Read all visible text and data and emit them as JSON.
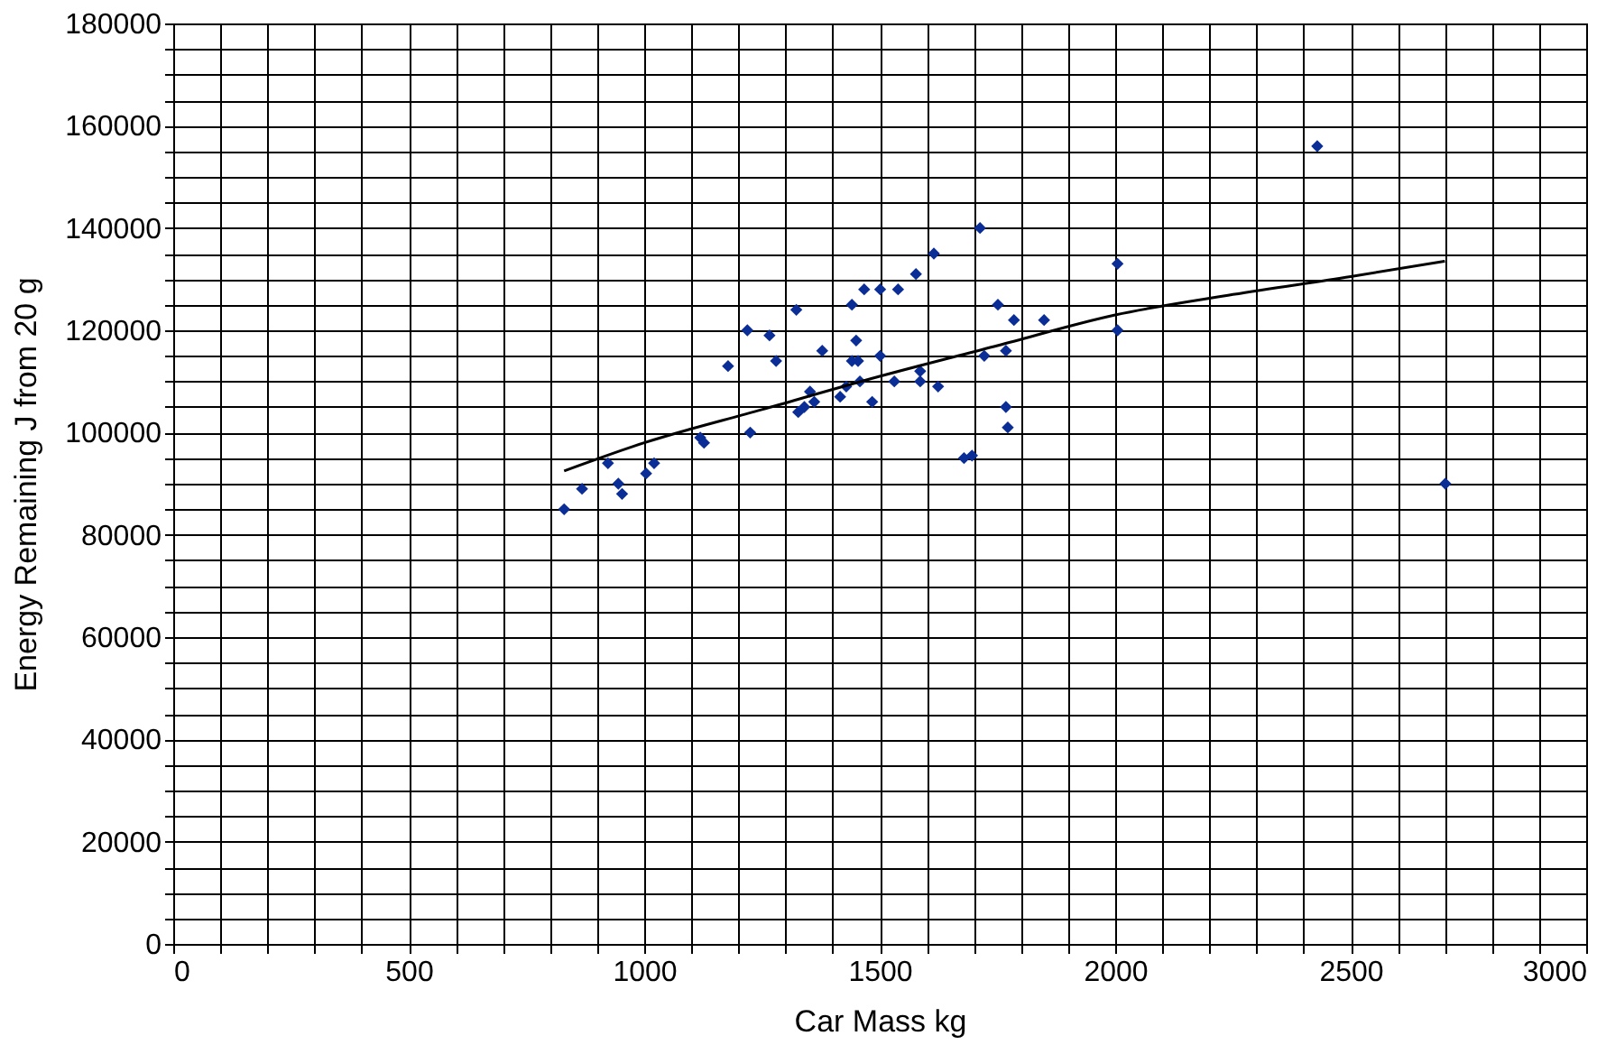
{
  "chart_data": {
    "type": "scatter",
    "xlabel": "Car Mass kg",
    "ylabel": "Energy Remaining J from 20 g",
    "xlim": [
      0,
      3000
    ],
    "ylim": [
      0,
      180000
    ],
    "xticks": [
      0,
      {
        "value": 100,
        "label": null
      },
      {
        "value": 200,
        "label": null
      },
      {
        "value": 300,
        "label": null
      },
      {
        "value": 400,
        "label": null
      },
      500,
      {
        "value": 600,
        "label": null
      },
      {
        "value": 700,
        "label": null
      },
      {
        "value": 800,
        "label": null
      },
      {
        "value": 900,
        "label": null
      },
      1000,
      {
        "value": 1100,
        "label": null
      },
      {
        "value": 1200,
        "label": null
      },
      {
        "value": 1300,
        "label": null
      },
      {
        "value": 1400,
        "label": null
      },
      1500,
      {
        "value": 1600,
        "label": null
      },
      {
        "value": 1700,
        "label": null
      },
      {
        "value": 1800,
        "label": null
      },
      {
        "value": 1900,
        "label": null
      },
      2000,
      {
        "value": 2100,
        "label": null
      },
      {
        "value": 2200,
        "label": null
      },
      {
        "value": 2300,
        "label": null
      },
      {
        "value": 2400,
        "label": null
      },
      2500,
      {
        "value": 2600,
        "label": null
      },
      {
        "value": 2700,
        "label": null
      },
      {
        "value": 2800,
        "label": null
      },
      {
        "value": 2900,
        "label": null
      },
      3000
    ],
    "yticks": [
      0,
      {
        "value": 5000,
        "label": null
      },
      {
        "value": 10000,
        "label": null
      },
      {
        "value": 15000,
        "label": null
      },
      20000,
      {
        "value": 25000,
        "label": null
      },
      {
        "value": 30000,
        "label": null
      },
      {
        "value": 35000,
        "label": null
      },
      40000,
      {
        "value": 45000,
        "label": null
      },
      {
        "value": 50000,
        "label": null
      },
      {
        "value": 55000,
        "label": null
      },
      60000,
      {
        "value": 65000,
        "label": null
      },
      {
        "value": 70000,
        "label": null
      },
      {
        "value": 75000,
        "label": null
      },
      80000,
      {
        "value": 85000,
        "label": null
      },
      {
        "value": 90000,
        "label": null
      },
      {
        "value": 95000,
        "label": null
      },
      100000,
      {
        "value": 105000,
        "label": null
      },
      {
        "value": 110000,
        "label": null
      },
      {
        "value": 115000,
        "label": null
      },
      120000,
      {
        "value": 125000,
        "label": null
      },
      {
        "value": 130000,
        "label": null
      },
      {
        "value": 135000,
        "label": null
      },
      140000,
      {
        "value": 145000,
        "label": null
      },
      {
        "value": 150000,
        "label": null
      },
      {
        "value": 155000,
        "label": null
      },
      160000,
      {
        "value": 165000,
        "label": null
      },
      {
        "value": 170000,
        "label": null
      },
      {
        "value": 175000,
        "label": null
      },
      180000
    ],
    "grid": true,
    "marker": "diamond",
    "series": [
      {
        "color": "#0a2d96",
        "x": [
          830,
          868,
          923,
          945,
          953,
          1004,
          1021,
          1119,
          1127,
          1225,
          1178,
          1219,
          1266,
          1280,
          1323,
          1378,
          1327,
          1340,
          1352,
          1361,
          1416,
          1429,
          1441,
          1450,
          1441,
          1454,
          1458,
          1467,
          1484,
          1501,
          1501,
          1531,
          1539,
          1577,
          1586,
          1586,
          1615,
          1624,
          1679,
          1696,
          1713,
          1722,
          1751,
          1768,
          1785,
          1768,
          1772,
          1849,
          2005,
          2005,
          2429,
          2701
        ],
        "values": [
          85000,
          89000,
          94000,
          90000,
          88000,
          92000,
          94000,
          99000,
          98000,
          100000,
          113000,
          120000,
          119000,
          114000,
          124000,
          116000,
          104000,
          105000,
          108000,
          106000,
          107000,
          109000,
          125000,
          118000,
          114000,
          114000,
          110000,
          128000,
          106000,
          128000,
          115000,
          110000,
          128000,
          131000,
          112000,
          110000,
          135000,
          109000,
          95000,
          95500,
          140000,
          115000,
          125000,
          116000,
          122000,
          105000,
          101000,
          122000,
          133000,
          120000,
          156000,
          90000
        ]
      },
      {
        "type": "line",
        "color": "#000000",
        "line_style": "solid",
        "marker": "none",
        "x": [
          830,
          1000,
          1250,
          1500,
          1750,
          2000,
          2250,
          2500,
          2700
        ],
        "values": [
          92500,
          98000,
          104500,
          111000,
          117000,
          123000,
          127000,
          130500,
          133500
        ]
      }
    ]
  }
}
